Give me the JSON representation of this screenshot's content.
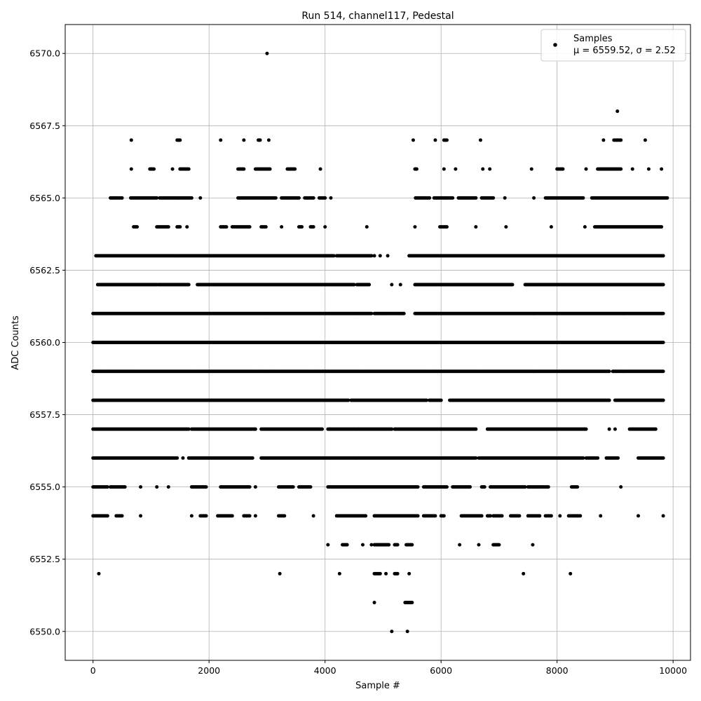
{
  "chart_data": {
    "type": "scatter",
    "title": "Run 514, channel117, Pedestal",
    "xlabel": "Sample #",
    "ylabel": "ADC Counts",
    "xlim": [
      -480,
      10300
    ],
    "ylim": [
      6549.0,
      6571.0
    ],
    "x_ticks": [
      0,
      2000,
      4000,
      6000,
      8000,
      10000
    ],
    "x_tick_labels": [
      "0",
      "2000",
      "4000",
      "6000",
      "8000",
      "10000"
    ],
    "y_ticks": [
      6550.0,
      6552.5,
      6555.0,
      6557.5,
      6560.0,
      6562.5,
      6565.0,
      6567.5,
      6570.0
    ],
    "y_tick_labels": [
      "6550.0",
      "6552.5",
      "6555.0",
      "6557.5",
      "6560.0",
      "6562.5",
      "6565.0",
      "6567.5",
      "6570.0"
    ],
    "grid": true,
    "legend": {
      "position": "top-right",
      "entries": [
        {
          "line1": "Samples",
          "line2": "μ = 6559.52, σ = 2.52"
        }
      ]
    },
    "series": [
      {
        "name": "Samples",
        "color": "#000000",
        "levels": [
          {
            "y": 6570,
            "segments": [
              [
                3000,
                3000
              ]
            ]
          },
          {
            "y": 6568,
            "segments": [
              [
                9040,
                9040
              ]
            ]
          },
          {
            "y": 6567,
            "segments": [
              [
                660,
                660
              ],
              [
                1450,
                1500
              ],
              [
                2200,
                2200
              ],
              [
                2600,
                2600
              ],
              [
                2850,
                2880
              ],
              [
                3030,
                3030
              ],
              [
                5520,
                5520
              ],
              [
                5900,
                5900
              ],
              [
                6050,
                6100
              ],
              [
                6680,
                6680
              ],
              [
                8800,
                8800
              ],
              [
                8980,
                9100
              ],
              [
                9520,
                9520
              ]
            ]
          },
          {
            "y": 6566,
            "segments": [
              [
                660,
                660
              ],
              [
                980,
                1050
              ],
              [
                1370,
                1370
              ],
              [
                1500,
                1650
              ],
              [
                2500,
                2600
              ],
              [
                2800,
                3050
              ],
              [
                3350,
                3480
              ],
              [
                3920,
                3920
              ],
              [
                5550,
                5580
              ],
              [
                6050,
                6050
              ],
              [
                6250,
                6250
              ],
              [
                6720,
                6720
              ],
              [
                6840,
                6840
              ],
              [
                7560,
                7560
              ],
              [
                8000,
                8100
              ],
              [
                8500,
                8500
              ],
              [
                8700,
                9100
              ],
              [
                9300,
                9300
              ],
              [
                9580,
                9580
              ],
              [
                9800,
                9800
              ]
            ]
          },
          {
            "y": 6565,
            "segments": [
              [
                300,
                500
              ],
              [
                650,
                1100
              ],
              [
                1150,
                1700
              ],
              [
                1850,
                1850
              ],
              [
                2500,
                3150
              ],
              [
                3250,
                3550
              ],
              [
                3650,
                3800
              ],
              [
                3900,
                4000
              ],
              [
                4100,
                4100
              ],
              [
                5560,
                5800
              ],
              [
                5880,
                6200
              ],
              [
                6300,
                6600
              ],
              [
                6700,
                6900
              ],
              [
                7100,
                7100
              ],
              [
                7600,
                7600
              ],
              [
                7800,
                8450
              ],
              [
                8600,
                9900
              ]
            ]
          },
          {
            "y": 6564,
            "segments": [
              [
                700,
                760
              ],
              [
                1100,
                1300
              ],
              [
                1450,
                1500
              ],
              [
                1620,
                1620
              ],
              [
                2200,
                2300
              ],
              [
                2400,
                2700
              ],
              [
                2900,
                2980
              ],
              [
                3250,
                3250
              ],
              [
                3550,
                3600
              ],
              [
                3750,
                3800
              ],
              [
                4000,
                4000
              ],
              [
                4720,
                4720
              ],
              [
                5550,
                5550
              ],
              [
                5980,
                6100
              ],
              [
                6600,
                6600
              ],
              [
                7120,
                7120
              ],
              [
                7900,
                7900
              ],
              [
                8480,
                8480
              ],
              [
                8650,
                9800
              ]
            ]
          },
          {
            "y": 6563,
            "segments": [
              [
                50,
                4150
              ],
              [
                4200,
                4800
              ],
              [
                4850,
                4850
              ],
              [
                4950,
                4950
              ],
              [
                5080,
                5080
              ],
              [
                5450,
                9830
              ]
            ]
          },
          {
            "y": 6562,
            "segments": [
              [
                80,
                1100
              ],
              [
                1130,
                1650
              ],
              [
                1800,
                4500
              ],
              [
                4550,
                4760
              ],
              [
                5150,
                5150
              ],
              [
                5300,
                5300
              ],
              [
                5550,
                7230
              ],
              [
                7450,
                9830
              ]
            ]
          },
          {
            "y": 6561,
            "segments": [
              [
                0,
                4200
              ],
              [
                4220,
                4800
              ],
              [
                4850,
                5360
              ],
              [
                5550,
                9830
              ]
            ]
          },
          {
            "y": 6560,
            "segments": [
              [
                0,
                9830
              ]
            ]
          },
          {
            "y": 6559,
            "segments": [
              [
                0,
                8900
              ],
              [
                8960,
                9830
              ]
            ]
          },
          {
            "y": 6558,
            "segments": [
              [
                0,
                480
              ],
              [
                500,
                4400
              ],
              [
                4450,
                5750
              ],
              [
                5800,
                6000
              ],
              [
                6150,
                8900
              ],
              [
                9000,
                9830
              ]
            ]
          },
          {
            "y": 6557,
            "segments": [
              [
                0,
                1650
              ],
              [
                1700,
                2800
              ],
              [
                2900,
                3950
              ],
              [
                4050,
                5150
              ],
              [
                5200,
                6600
              ],
              [
                6800,
                8500
              ],
              [
                8900,
                8900
              ],
              [
                9000,
                9000
              ],
              [
                9250,
                9700
              ]
            ]
          },
          {
            "y": 6556,
            "segments": [
              [
                0,
                1450
              ],
              [
                1550,
                1550
              ],
              [
                1650,
                2750
              ],
              [
                2900,
                6600
              ],
              [
                6650,
                8450
              ],
              [
                8500,
                8700
              ],
              [
                8850,
                9050
              ],
              [
                9400,
                9830
              ]
            ]
          },
          {
            "y": 6555,
            "segments": [
              [
                0,
                250
              ],
              [
                300,
                550
              ],
              [
                820,
                820
              ],
              [
                1100,
                1100
              ],
              [
                1300,
                1300
              ],
              [
                1700,
                1950
              ],
              [
                2200,
                2700
              ],
              [
                2800,
                2800
              ],
              [
                3200,
                3450
              ],
              [
                3550,
                3750
              ],
              [
                4050,
                5600
              ],
              [
                5700,
                6100
              ],
              [
                6200,
                6500
              ],
              [
                6700,
                6750
              ],
              [
                6850,
                7450
              ],
              [
                7500,
                7850
              ],
              [
                8250,
                8350
              ],
              [
                9100,
                9100
              ]
            ]
          },
          {
            "y": 6554,
            "segments": [
              [
                0,
                250
              ],
              [
                400,
                500
              ],
              [
                820,
                820
              ],
              [
                1700,
                1700
              ],
              [
                1850,
                1950
              ],
              [
                2150,
                2400
              ],
              [
                2600,
                2700
              ],
              [
                2800,
                2800
              ],
              [
                3200,
                3300
              ],
              [
                3800,
                3800
              ],
              [
                4200,
                4700
              ],
              [
                4850,
                5600
              ],
              [
                5700,
                5900
              ],
              [
                6000,
                6050
              ],
              [
                6350,
                6700
              ],
              [
                6800,
                6850
              ],
              [
                6900,
                7050
              ],
              [
                7200,
                7350
              ],
              [
                7500,
                7700
              ],
              [
                7800,
                7900
              ],
              [
                8050,
                8050
              ],
              [
                8200,
                8400
              ],
              [
                8750,
                8750
              ],
              [
                9400,
                9400
              ],
              [
                9830,
                9830
              ]
            ]
          },
          {
            "y": 6553,
            "segments": [
              [
                4050,
                4050
              ],
              [
                4300,
                4380
              ],
              [
                4650,
                4650
              ],
              [
                4800,
                4800
              ],
              [
                4850,
                5100
              ],
              [
                5200,
                5250
              ],
              [
                5400,
                5500
              ],
              [
                6320,
                6320
              ],
              [
                6650,
                6650
              ],
              [
                6900,
                7000
              ],
              [
                7580,
                7580
              ]
            ]
          },
          {
            "y": 6552,
            "segments": [
              [
                100,
                100
              ],
              [
                3220,
                3220
              ],
              [
                4250,
                4250
              ],
              [
                4850,
                4950
              ],
              [
                5050,
                5050
              ],
              [
                5200,
                5250
              ],
              [
                5450,
                5450
              ],
              [
                7420,
                7420
              ],
              [
                8230,
                8230
              ]
            ]
          },
          {
            "y": 6551,
            "segments": [
              [
                4850,
                4850
              ],
              [
                5380,
                5500
              ]
            ]
          },
          {
            "y": 6550,
            "segments": [
              [
                5150,
                5150
              ],
              [
                5420,
                5420
              ]
            ]
          }
        ]
      }
    ]
  }
}
